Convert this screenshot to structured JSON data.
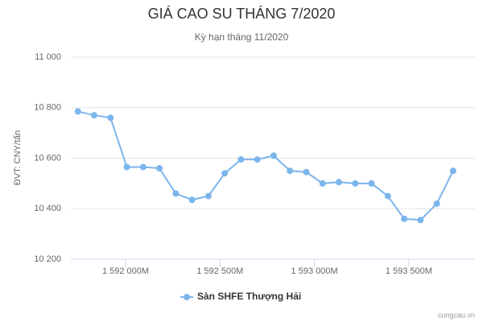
{
  "chart_data": {
    "type": "line",
    "title": "GIÁ CAO SU THÁNG 7/2020",
    "subtitle": "Kỳ hạn tháng 11/2020",
    "y_label": "ĐVT: CNY/tấn",
    "credit": "cungcau.vn",
    "x": [
      1591747200000,
      1591833600000,
      1591920000000,
      1592006400000,
      1592092800000,
      1592179200000,
      1592265600000,
      1592352000000,
      1592438400000,
      1592524800000,
      1592611200000,
      1592697600000,
      1592784000000,
      1592870400000,
      1592956800000,
      1593043200000,
      1593129600000,
      1593216000000,
      1593302400000,
      1593388800000,
      1593475200000,
      1593561600000,
      1593648000000,
      1593734400000
    ],
    "series": [
      {
        "name": "Sàn SHFE Thượng Hải",
        "color": "#7cb5ec",
        "values": [
          10785,
          10770,
          10760,
          10565,
          10565,
          10560,
          10460,
          10435,
          10450,
          10540,
          10595,
          10595,
          10610,
          10550,
          10545,
          10500,
          10505,
          10500,
          10500,
          10450,
          10360,
          10355,
          10420,
          10550
        ]
      }
    ],
    "xlim": [
      1591710000000,
      1593850000000
    ],
    "xticks": [
      {
        "value": 1592000000000,
        "label": "1 592 000M"
      },
      {
        "value": 1592500000000,
        "label": "1 592 500M"
      },
      {
        "value": 1593000000000,
        "label": "1 593 000M"
      },
      {
        "value": 1593500000000,
        "label": "1 593 500M"
      }
    ],
    "ylim": [
      10200,
      11000
    ],
    "yticks": [
      {
        "value": 10200,
        "label": "10 200"
      },
      {
        "value": 10400,
        "label": "10 400"
      },
      {
        "value": 10600,
        "label": "10 600"
      },
      {
        "value": 10800,
        "label": "10 800"
      },
      {
        "value": 11000,
        "label": "11 000"
      }
    ],
    "grid": true
  }
}
